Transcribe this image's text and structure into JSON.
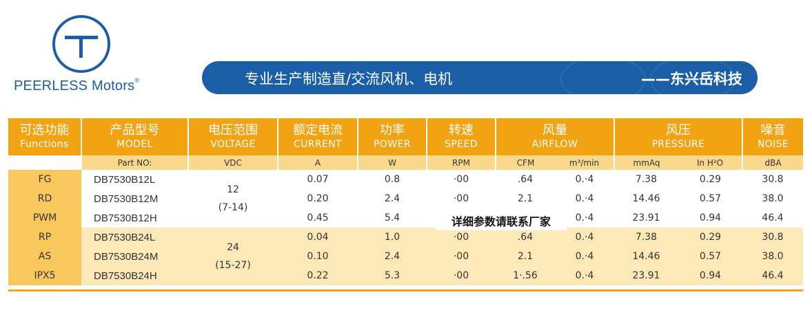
{
  "logo": {
    "brand": "PEERLESS Motors",
    "reg_mark": "®"
  },
  "banner": {
    "slogan": "专业生产制造直/交流风机、电机",
    "company": "——东兴岳科技"
  },
  "colors": {
    "brand_blue": "#1a5ea8",
    "header_orange": "#f2a313",
    "unit_row": "#fbd98c",
    "group_highlight": "#fde8b8"
  },
  "table": {
    "headers": [
      {
        "cn": "可选功能",
        "en": "Functions"
      },
      {
        "cn": "产品型号",
        "en": "MODEL"
      },
      {
        "cn": "电压范围",
        "en": "VOLTAGE"
      },
      {
        "cn": "额定电流",
        "en": "CURRENT"
      },
      {
        "cn": "功率",
        "en": "POWER"
      },
      {
        "cn": "转速",
        "en": "SPEED"
      },
      {
        "cn": "风量",
        "en": "AIRFLOW"
      },
      {
        "cn": "风压",
        "en": "PRESSURE"
      },
      {
        "cn": "噪音",
        "en": "NOISE"
      }
    ],
    "units": {
      "model": "Part NO:",
      "voltage": "VDC",
      "current": "A",
      "power": "W",
      "speed": "RPM",
      "airflow_a": "CFM",
      "airflow_b": "m³/min",
      "pressure_a": "mmAq",
      "pressure_b": "In H²O",
      "noise": "dBA"
    },
    "functions": [
      "FG",
      "RD",
      "PWM",
      "RP",
      "AS",
      "IPX5"
    ],
    "voltage_groups": [
      {
        "nominal": "12",
        "range": "(7-14)"
      },
      {
        "nominal": "24",
        "range": "(15-27)"
      }
    ],
    "rows": [
      {
        "model": "DB7530B12L",
        "current": "0.07",
        "power": "0.8",
        "speed": "·00",
        "cfm": ".64",
        "m3": "0.·4",
        "mmaq": "7.38",
        "inh2o": "0.29",
        "noise": "30.8"
      },
      {
        "model": "DB7530B12M",
        "current": "0.20",
        "power": "2.4",
        "speed": "·00",
        "cfm": "2.1",
        "m3": "0.·4",
        "mmaq": "14.46",
        "inh2o": "0.57",
        "noise": "38.0"
      },
      {
        "model": "DB7530B12H",
        "current": "0.45",
        "power": "5.4",
        "speed": "",
        "cfm": "",
        "m3": "0.·4",
        "mmaq": "23.91",
        "inh2o": "0.94",
        "noise": "46.4"
      },
      {
        "model": "DB7530B24L",
        "current": "0.04",
        "power": "1.0",
        "speed": "·00",
        "cfm": ".64",
        "m3": "0.·4",
        "mmaq": "7.38",
        "inh2o": "0.29",
        "noise": "30.8"
      },
      {
        "model": "DB7530B24M",
        "current": "0.10",
        "power": "2.4",
        "speed": "·00",
        "cfm": "2.1",
        "m3": "0.·4",
        "mmaq": "14.46",
        "inh2o": "0.57",
        "noise": "38.0"
      },
      {
        "model": "DB7530B24H",
        "current": "0.22",
        "power": "5.3",
        "speed": "·00",
        "cfm": "1·.56",
        "m3": "0.·4",
        "mmaq": "23.91",
        "inh2o": "0.94",
        "noise": "46.4"
      }
    ]
  },
  "overlay_note": "详细参数请联系厂家"
}
